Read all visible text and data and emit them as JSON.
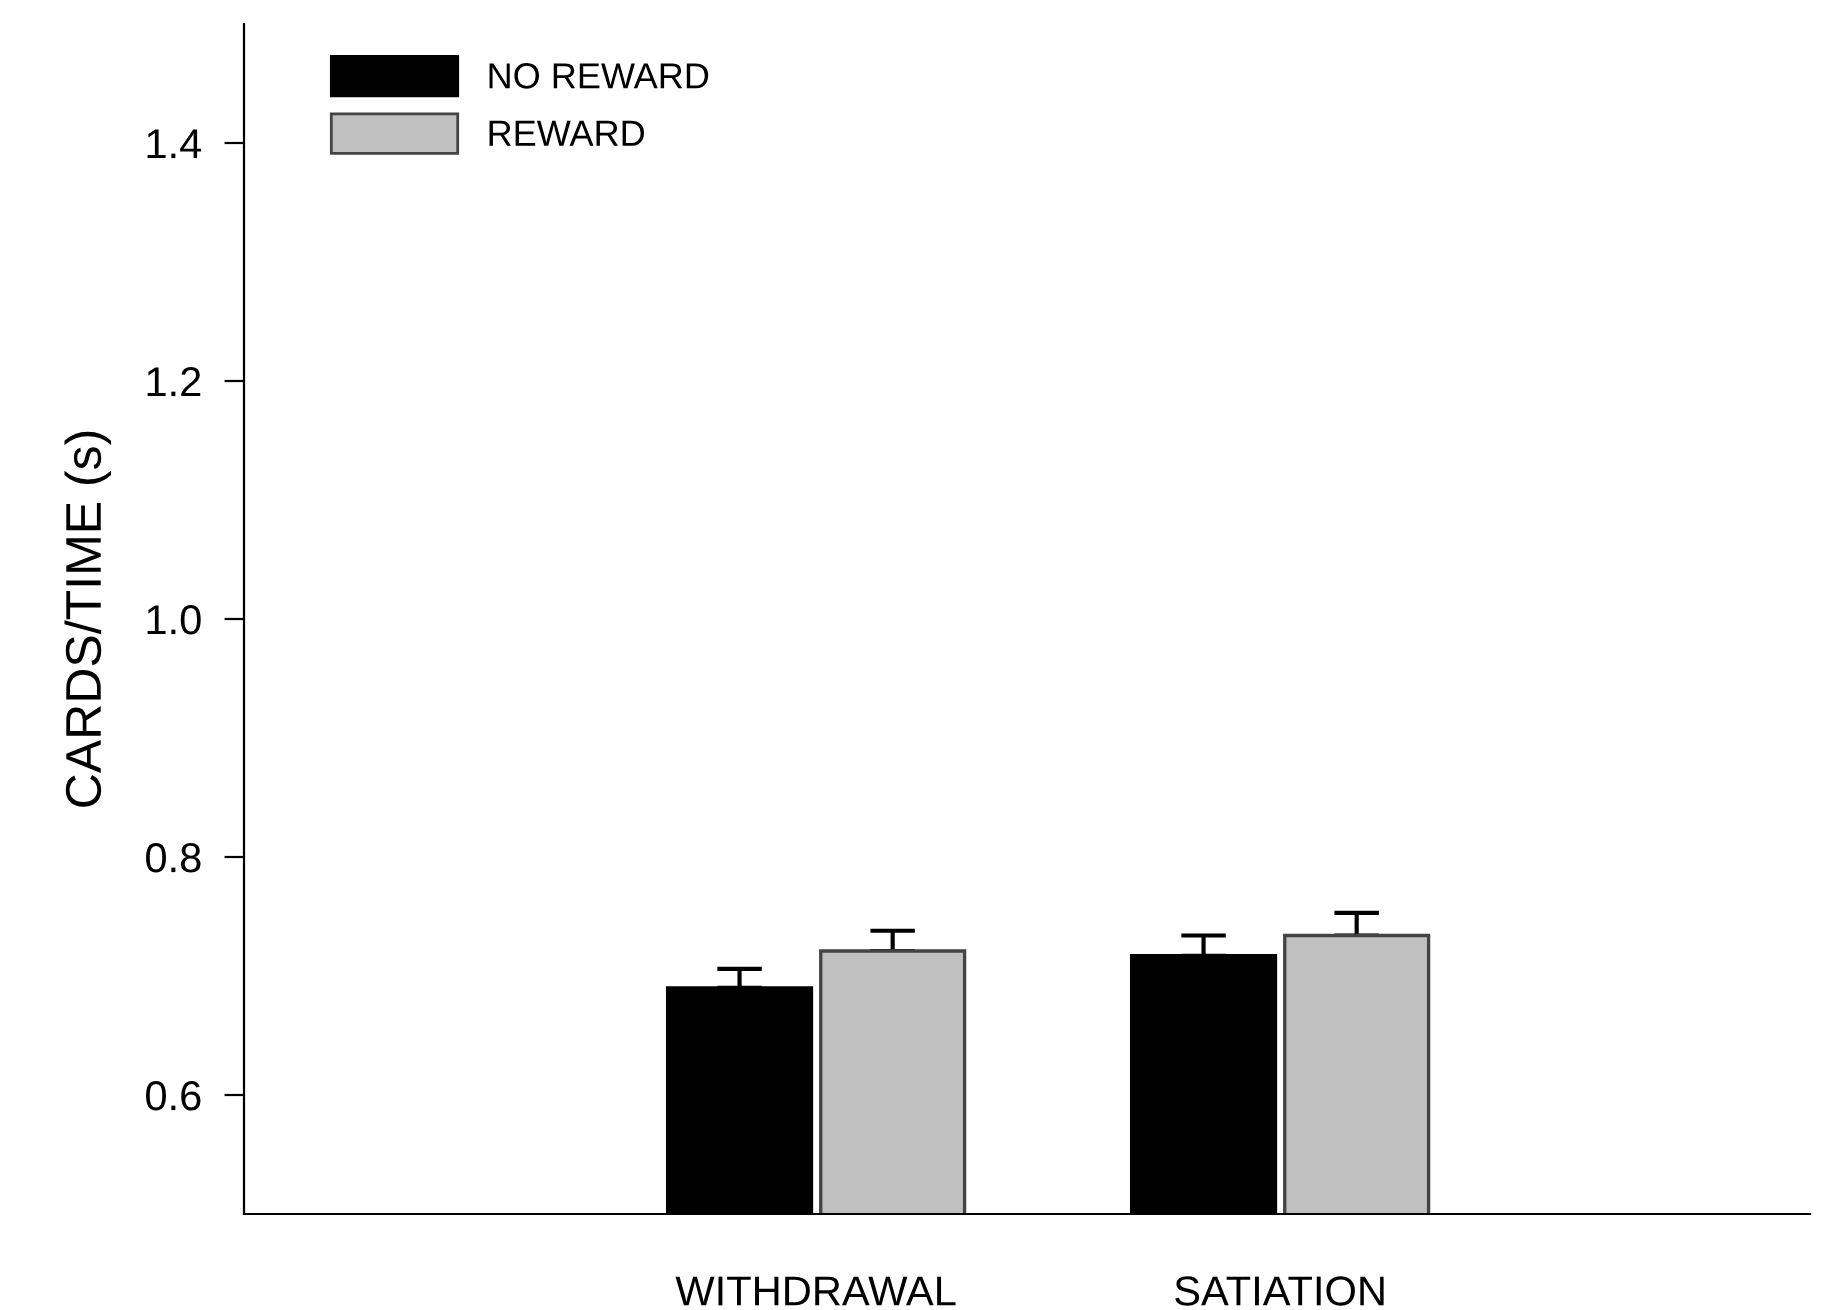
{
  "chart_data": {
    "type": "bar",
    "ylabel": "CARDS/TIME (s)",
    "categories": [
      "WITHDRAWAL",
      "SATIATION"
    ],
    "series": [
      {
        "name": "NO REWARD",
        "color": "#000000",
        "values": [
          0.69,
          0.717
        ],
        "errors": [
          [
            0.69,
            0.706
          ],
          [
            0.717,
            0.734
          ]
        ]
      },
      {
        "name": "REWARD",
        "color": "#c0c0c0",
        "values": [
          0.721,
          0.734
        ],
        "errors": [
          [
            0.721,
            0.738
          ],
          [
            0.734,
            0.753
          ]
        ]
      }
    ],
    "ylim": [
      0.5,
      1.5
    ],
    "yticks": [
      0.6,
      0.8,
      {
        "value": 1.0,
        "label": "1.0"
      },
      1.2,
      1.4
    ],
    "grid": false,
    "legend": "top left"
  }
}
